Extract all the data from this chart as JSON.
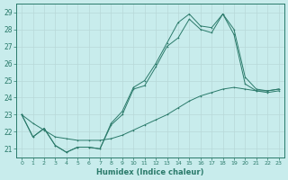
{
  "xlabel": "Humidex (Indice chaleur)",
  "bg_color": "#c8ecec",
  "grid_color": "#d0e8e8",
  "line_color": "#2a7a6a",
  "xlim": [
    -0.5,
    23.5
  ],
  "ylim": [
    20.5,
    29.5
  ],
  "xticks": [
    0,
    1,
    2,
    3,
    4,
    5,
    6,
    7,
    8,
    9,
    10,
    11,
    12,
    13,
    14,
    15,
    16,
    17,
    18,
    19,
    20,
    21,
    22,
    23
  ],
  "yticks": [
    21,
    22,
    23,
    24,
    25,
    26,
    27,
    28,
    29
  ],
  "line1_x": [
    0,
    1,
    2,
    3,
    4,
    5,
    6,
    7,
    8,
    9,
    10,
    11,
    12,
    13,
    14,
    15,
    16,
    17,
    18,
    19,
    20,
    21,
    22,
    23
  ],
  "line1_y": [
    23.0,
    21.7,
    22.2,
    21.2,
    20.8,
    21.1,
    21.1,
    21.0,
    22.5,
    23.2,
    24.6,
    25.0,
    26.0,
    27.2,
    28.4,
    28.9,
    28.2,
    28.1,
    28.9,
    28.0,
    25.2,
    24.5,
    24.4,
    24.5
  ],
  "line2_x": [
    0,
    1,
    2,
    3,
    4,
    5,
    6,
    7,
    8,
    9,
    10,
    11,
    12,
    13,
    14,
    15,
    16,
    17,
    18,
    19,
    20,
    21,
    22,
    23
  ],
  "line2_y": [
    23.0,
    21.7,
    22.2,
    21.2,
    20.8,
    21.1,
    21.1,
    21.0,
    22.4,
    23.0,
    24.5,
    24.7,
    25.8,
    27.0,
    27.5,
    28.6,
    28.0,
    27.8,
    28.9,
    27.7,
    24.8,
    24.4,
    24.3,
    24.4
  ],
  "line3_x": [
    0,
    1,
    2,
    3,
    4,
    5,
    6,
    7,
    8,
    9,
    10,
    11,
    12,
    13,
    14,
    15,
    16,
    17,
    18,
    19,
    20,
    21,
    22,
    23
  ],
  "line3_y": [
    23.0,
    22.5,
    22.1,
    21.7,
    21.6,
    21.5,
    21.5,
    21.5,
    21.6,
    21.8,
    22.1,
    22.4,
    22.7,
    23.0,
    23.4,
    23.8,
    24.1,
    24.3,
    24.5,
    24.6,
    24.5,
    24.4,
    24.4,
    24.5
  ]
}
